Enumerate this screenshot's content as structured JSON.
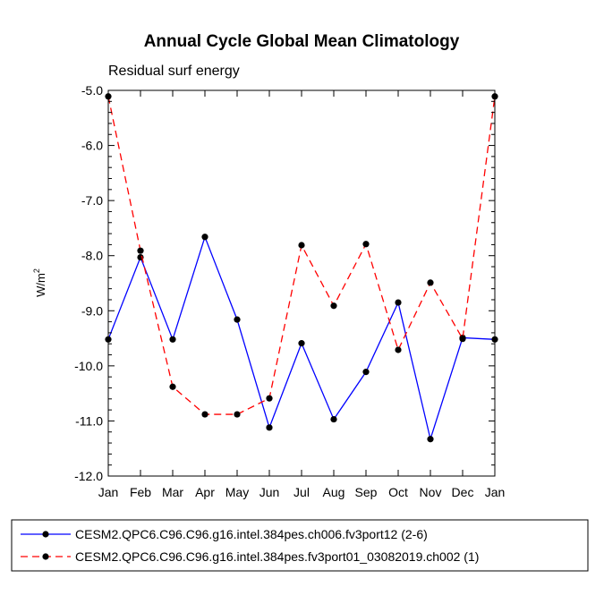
{
  "chart_data": {
    "type": "line",
    "title": "Annual Cycle Global Mean Climatology",
    "subtitle": "Residual surf energy",
    "xlabel": "",
    "ylabel": "W/m",
    "ylabel_superscript": "2",
    "categories": [
      "Jan",
      "Feb",
      "Mar",
      "Apr",
      "May",
      "Jun",
      "Jul",
      "Aug",
      "Sep",
      "Oct",
      "Nov",
      "Dec",
      "Jan"
    ],
    "ylim": [
      -12.0,
      -5.0
    ],
    "yticks": [
      "-12.0",
      "-11.0",
      "-10.0",
      "-9.0",
      "-8.0",
      "-7.0",
      "-6.0",
      "-5.0"
    ],
    "series": [
      {
        "name": "CESM2.QPC6.C96.C96.g16.intel.384pes.ch006.fv3port12 (2-6)",
        "color": "#0000ff",
        "style": "solid",
        "values": [
          -9.52,
          -8.03,
          -9.52,
          -7.66,
          -9.16,
          -11.12,
          -9.59,
          -10.97,
          -10.11,
          -8.85,
          -11.33,
          -9.49,
          -9.52
        ]
      },
      {
        "name": "CESM2.QPC6.C96.C96.g16.intel.384pes.fv3port01_03082019.ch002 (1)",
        "color": "#ff0000",
        "style": "dashed",
        "values": [
          -5.11,
          -7.91,
          -10.38,
          -10.88,
          -10.88,
          -10.59,
          -7.81,
          -8.91,
          -7.79,
          -9.71,
          -8.49,
          -9.51,
          -5.11
        ]
      }
    ],
    "legend_position": "bottom"
  }
}
